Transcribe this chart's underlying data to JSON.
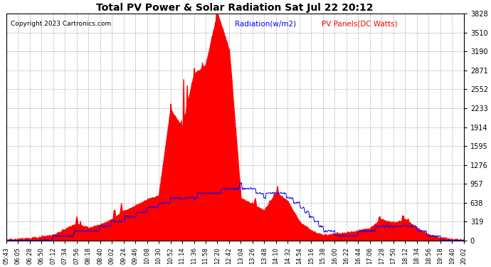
{
  "title": "Total PV Power & Solar Radiation Sat Jul 22 20:12",
  "copyright": "Copyright 2023 Cartronics.com",
  "legend_radiation": "Radiation(w/m2)",
  "legend_pv": "PV Panels(DC Watts)",
  "y_max": 3828.5,
  "y_ticks": [
    0.0,
    319.0,
    638.1,
    957.1,
    1276.2,
    1595.2,
    1914.3,
    2233.3,
    2552.3,
    2871.4,
    3190.4,
    3509.5,
    3828.5
  ],
  "x_labels": [
    "05:43",
    "06:05",
    "06:28",
    "06:50",
    "07:12",
    "07:34",
    "07:56",
    "08:18",
    "08:40",
    "09:02",
    "09:24",
    "09:46",
    "10:08",
    "10:30",
    "10:52",
    "11:14",
    "11:36",
    "11:58",
    "12:20",
    "12:42",
    "13:04",
    "13:26",
    "13:48",
    "14:10",
    "14:32",
    "14:54",
    "15:16",
    "15:38",
    "16:00",
    "16:22",
    "16:44",
    "17:06",
    "17:28",
    "17:50",
    "18:12",
    "18:34",
    "18:56",
    "19:18",
    "19:40",
    "20:02"
  ],
  "background_color": "#ffffff",
  "grid_color": "#999999",
  "fill_color": "#ff0000",
  "line_color_blue": "#0000ff",
  "title_color": "#000000",
  "copyright_color": "#000000"
}
